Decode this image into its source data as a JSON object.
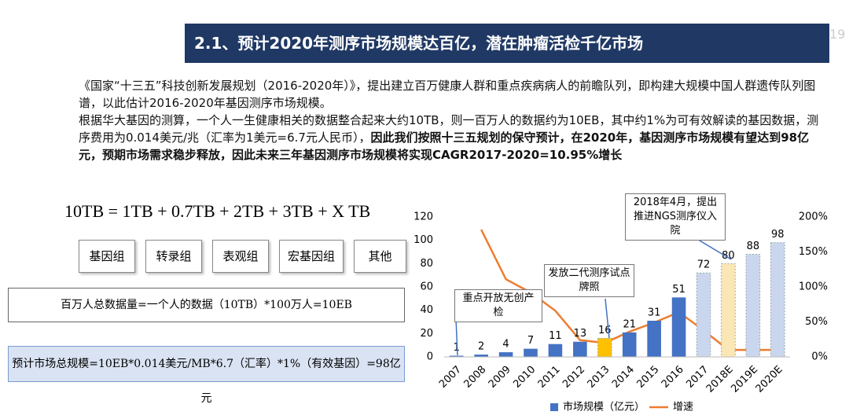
{
  "header": {
    "title": "2.1、预计2020年测序市场规模达百亿，潜在肿瘤活检千亿市场",
    "page": "19"
  },
  "paragraphs": [
    "《国家“十三五”科技创新发展规划（2016-2020年）》，提出建立百万健康人群和重点疾病病人的前瞻队列，即构建大规模中国人群遗传队列图谱，以此估计2016-2020年基因测序市场规模。",
    "根据华大基因的测算，一个人一生健康相关的数据整合起来大约10TB，则一百万人的数据约为10EB，其中约1%为可有效解读的基因数据，测序费用为0.014美元/兆（汇率为1美元=6.7元人民币），"
  ],
  "bold_text": "因此我们按照十三五规划的保守预计，在2020年，基因测序市场规模有望达到98亿元，预期市场需求稳步释放，因此未来三年基因测序市场规模将实现CAGR2017-2020=10.95%增长",
  "formula": "10TB = 1TB + 0.7TB + 2TB + 3TB + X TB",
  "data_types": [
    "基因组",
    "转录组",
    "表观组",
    "宏基因组",
    "其他"
  ],
  "total_box": "百万人总数据量=一个人的数据（10TB）*100万人=10EB",
  "market_box": "预计市场总规模=10EB*0.014美元/MB*6.7（汇率）*1%（有效基因）=98亿元",
  "chart_data": {
    "type": "bar",
    "categories": [
      "2007",
      "2008",
      "2009",
      "2010",
      "2011",
      "2012",
      "2013",
      "2014",
      "2015",
      "2016",
      "2017",
      "2018E",
      "2019E",
      "2020E"
    ],
    "series": [
      {
        "name": "市场规模（亿元）",
        "color": "#4472c4",
        "values": [
          1,
          2,
          4,
          7,
          11,
          13,
          16,
          21,
          31,
          51,
          72,
          80,
          88,
          98
        ],
        "colors": [
          "#4472c4",
          "#4472c4",
          "#4472c4",
          "#4472c4",
          "#4472c4",
          "#4472c4",
          "#ffc000",
          "#4472c4",
          "#4472c4",
          "#4472c4",
          "#c9d6ee",
          "#fbe7b5",
          "#c9d6ee",
          "#c9d6ee"
        ]
      },
      {
        "name": "增速",
        "type": "line",
        "axis": "y2",
        "color": "#ed7d31",
        "values": [
          null,
          182,
          111,
          92,
          66,
          24,
          20,
          36,
          49,
          64,
          38,
          10,
          10,
          10
        ]
      }
    ],
    "ylim": [
      0,
      120
    ],
    "yticks": [
      0,
      20,
      40,
      60,
      80,
      100,
      120
    ],
    "y2lim": [
      0,
      200
    ],
    "y2ticks": [
      {
        "value": 0,
        "label": "0%"
      },
      {
        "value": 50,
        "label": "50%"
      },
      {
        "value": 100,
        "label": "100%"
      },
      {
        "value": 150,
        "label": "150%"
      },
      {
        "value": 200,
        "label": "200%"
      }
    ],
    "annotations": [
      "重点开放无创产检",
      "发放二代测序试点牌照",
      "2018年4月，提出推进NGS测序仪入院"
    ]
  }
}
